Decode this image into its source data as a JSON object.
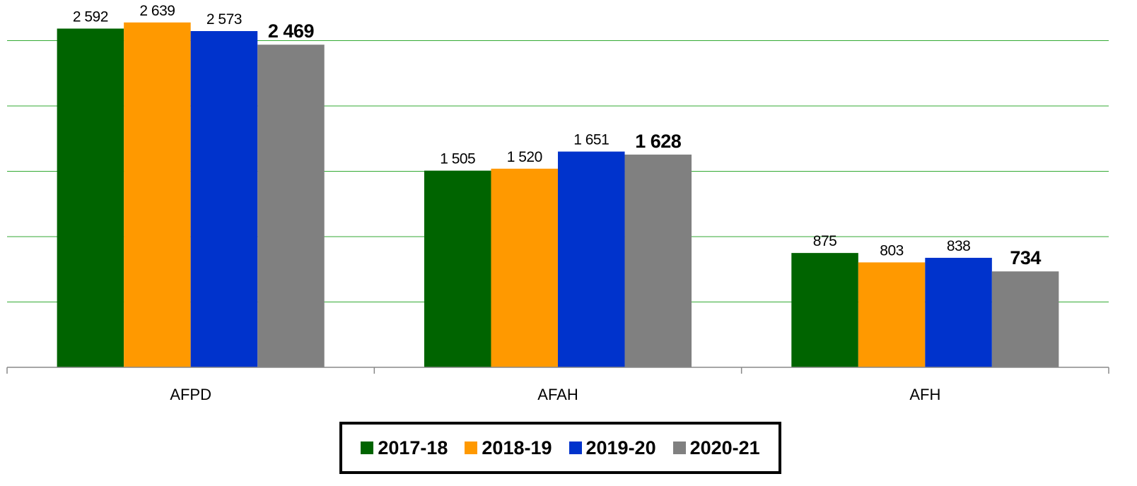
{
  "chart_data": {
    "type": "bar",
    "categories": [
      "AFPD",
      "AFAH",
      "AFH"
    ],
    "series": [
      {
        "name": "2017-18",
        "color": "#006400",
        "values": [
          2592,
          1505,
          875
        ],
        "value_labels": [
          "2 592",
          "1 505",
          "875"
        ]
      },
      {
        "name": "2018-19",
        "color": "#ff9900",
        "values": [
          2639,
          1520,
          803
        ],
        "value_labels": [
          "2 639",
          "1 520",
          "803"
        ]
      },
      {
        "name": "2019-20",
        "color": "#0033cc",
        "values": [
          2573,
          1651,
          838
        ],
        "value_labels": [
          "2 573",
          "1 651",
          "838"
        ]
      },
      {
        "name": "2020-21",
        "color": "#808080",
        "values": [
          2469,
          1628,
          734
        ],
        "value_labels": [
          "2 469",
          "1 628",
          "734"
        ]
      }
    ],
    "ylim": [
      0,
      2800
    ],
    "yticks": [
      500,
      1000,
      1500,
      2000,
      2500
    ],
    "grid": true,
    "legend": "bottom"
  }
}
